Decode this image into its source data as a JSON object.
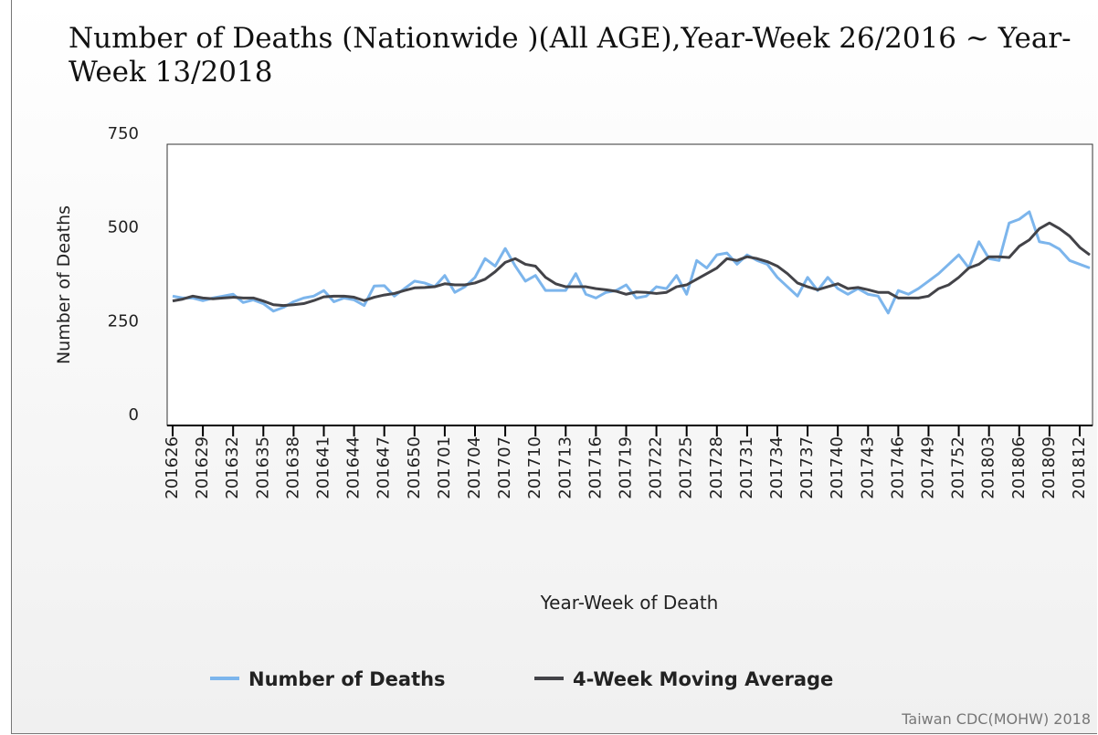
{
  "chart_data": {
    "type": "line",
    "title": "Number of Deaths (Nationwide )(All AGE),Year-Week 26/2016 ~ Year-Week 13/2018",
    "x_label": "Year-Week of Death",
    "y_label": "Number of Deaths",
    "source": "Taiwan CDC(MOHW) 2018",
    "categories": [
      "201626",
      null,
      null,
      "201629",
      null,
      null,
      "201632",
      null,
      null,
      "201635",
      null,
      null,
      "201638",
      null,
      null,
      "201641",
      null,
      null,
      "201644",
      null,
      null,
      "201647",
      null,
      null,
      "201650",
      null,
      null,
      "201701",
      null,
      null,
      "201704",
      null,
      null,
      "201707",
      null,
      null,
      "201710",
      null,
      null,
      "201713",
      null,
      null,
      "201716",
      null,
      null,
      "201719",
      null,
      null,
      "201722",
      null,
      null,
      "201725",
      null,
      null,
      "201728",
      null,
      null,
      "201731",
      null,
      null,
      "201734",
      null,
      null,
      "201737",
      null,
      null,
      "201740",
      null,
      null,
      "201743",
      null,
      null,
      "201746",
      null,
      null,
      "201749",
      null,
      null,
      "201752",
      null,
      null,
      "201803",
      null,
      null,
      "201806",
      null,
      null,
      "201809",
      null,
      null,
      "201812",
      null
    ],
    "series": [
      {
        "name": "Number of Deaths",
        "color": "#7cb5ec",
        "values": [
          345,
          340,
          340,
          333,
          340,
          345,
          350,
          328,
          335,
          325,
          305,
          315,
          330,
          340,
          345,
          360,
          330,
          340,
          335,
          320,
          372,
          373,
          345,
          365,
          385,
          380,
          370,
          400,
          355,
          370,
          395,
          445,
          425,
          472,
          425,
          385,
          400,
          360,
          360,
          360,
          405,
          350,
          340,
          355,
          360,
          375,
          340,
          345,
          370,
          365,
          400,
          350,
          440,
          420,
          455,
          460,
          430,
          455,
          440,
          430,
          395,
          370,
          345,
          395,
          360,
          395,
          365,
          350,
          365,
          350,
          345,
          300,
          360,
          350,
          365,
          385,
          405,
          430,
          455,
          420,
          490,
          445,
          440,
          540,
          550,
          570,
          490,
          485,
          470,
          440,
          430,
          420
        ]
      },
      {
        "name": "4-Week Moving Average",
        "color": "#434348",
        "values": [
          332,
          337,
          345,
          340,
          338,
          340,
          342,
          340,
          340,
          332,
          322,
          320,
          322,
          325,
          333,
          343,
          345,
          345,
          342,
          333,
          342,
          348,
          352,
          360,
          367,
          368,
          370,
          378,
          375,
          375,
          380,
          390,
          410,
          435,
          445,
          430,
          425,
          395,
          378,
          370,
          370,
          370,
          365,
          362,
          358,
          350,
          356,
          355,
          352,
          355,
          370,
          375,
          390,
          405,
          420,
          445,
          440,
          450,
          445,
          437,
          425,
          405,
          380,
          370,
          362,
          370,
          378,
          365,
          368,
          362,
          355,
          355,
          340,
          340,
          340,
          345,
          365,
          375,
          395,
          420,
          430,
          450,
          450,
          448,
          478,
          495,
          525,
          540,
          525,
          505,
          475,
          455
        ]
      }
    ],
    "ylim": [
      0,
      750
    ],
    "yticks": [
      0,
      250,
      500,
      750
    ]
  }
}
